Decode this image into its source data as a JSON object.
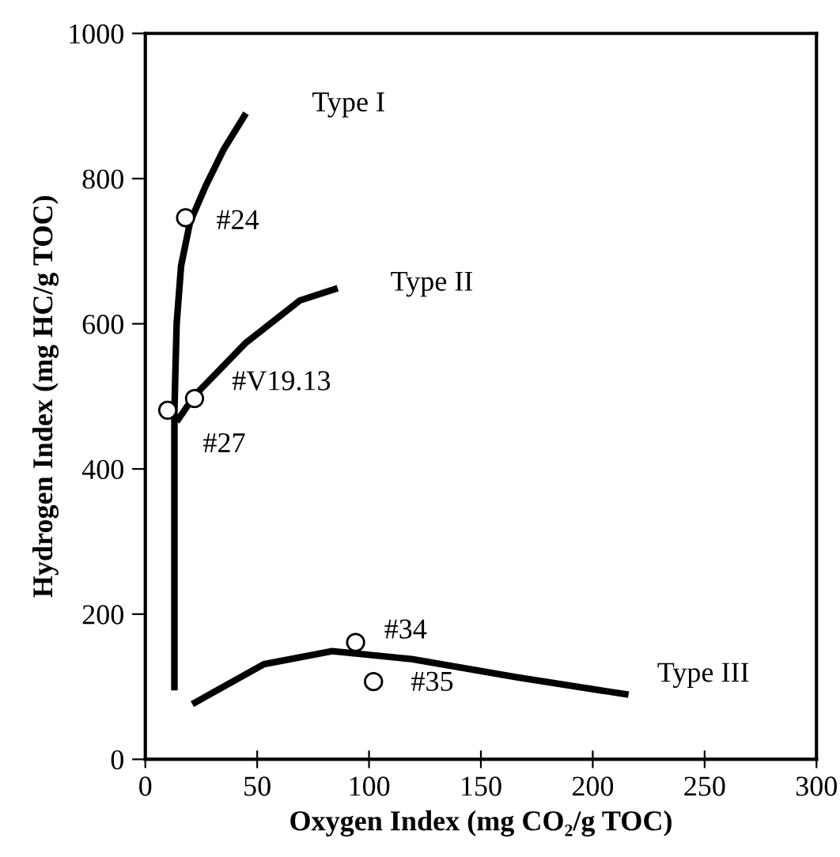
{
  "chart_data": {
    "type": "line",
    "xlabel": "Oxygen Index (mg CO₂/g TOC)",
    "ylabel": "Hydrogen Index (mg HC/g TOC)",
    "xlim": [
      0,
      300
    ],
    "ylim": [
      0,
      1000
    ],
    "xticks": [
      0,
      50,
      100,
      150,
      200,
      250,
      300
    ],
    "yticks": [
      0,
      200,
      400,
      600,
      800,
      1000
    ],
    "grid": false,
    "legend": false,
    "series": [
      {
        "name": "Type I",
        "color": "#000000",
        "marker": "none",
        "x": [
          13,
          13,
          13,
          14,
          16,
          20,
          27,
          35,
          45
        ],
        "values": [
          95,
          400,
          480,
          600,
          680,
          740,
          790,
          840,
          890
        ]
      },
      {
        "name": "Type II",
        "color": "#000000",
        "marker": "none",
        "x": [
          14,
          22,
          45,
          69,
          86
        ],
        "values": [
          465,
          501,
          574,
          632,
          649
        ]
      },
      {
        "name": "Type III",
        "color": "#000000",
        "marker": "none",
        "x": [
          21,
          53,
          83.5,
          119,
          166,
          216
        ],
        "values": [
          76,
          131,
          149,
          138,
          113,
          89
        ]
      },
      {
        "type": "scatter",
        "color": "#000000",
        "marker": "circle",
        "x": [
          18,
          10,
          22,
          94,
          102
        ],
        "values": [
          746,
          481,
          497,
          161,
          107
        ]
      }
    ],
    "annotations": [
      {
        "text": "#24",
        "x": 18,
        "y": 746
      },
      {
        "text": "#27",
        "x": 10,
        "y": 481
      },
      {
        "text": "#V19.13",
        "x": 22,
        "y": 497
      },
      {
        "text": "#34",
        "x": 94,
        "y": 161
      },
      {
        "text": "#35",
        "x": 102,
        "y": 107
      }
    ]
  }
}
